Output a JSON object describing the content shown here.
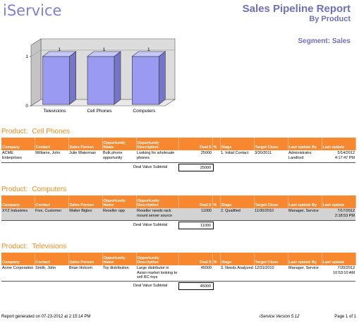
{
  "header": {
    "logo": "iService",
    "title": "Sales Pipeline Report",
    "subtitle": "By Product",
    "segment": "Segment: Sales"
  },
  "chart_data": {
    "type": "bar",
    "categories": [
      "Televisions",
      "Cell Phones",
      "Computers"
    ],
    "values": [
      1,
      1,
      1
    ],
    "data_labels": [
      "1",
      "1",
      "1"
    ],
    "ylim": [
      0,
      1
    ],
    "yticks": [
      "0",
      "1"
    ],
    "bar_color": "#9a9af2",
    "three_d": true
  },
  "columns": [
    "Company",
    "Contact",
    "Sales Person",
    "Opportunity Name",
    "Opportunity Description",
    "Deal $",
    "%",
    "Stage",
    "Target Close",
    "Last update By",
    "Last update"
  ],
  "subtotal_label": "Deal Value Subtotal",
  "product_label": "Product:",
  "sections": [
    {
      "product": "Cell Phones",
      "rows": [
        {
          "company": "ACME Enterprises",
          "contact": "Williams, John",
          "sales_person": "Julie Waterman",
          "opp_name": "Bulk phone opportunity",
          "opp_desc": "Looking for wholesale phones",
          "deal": "25000",
          "pct": "",
          "stage": "1. Initial Contact",
          "target_close": "3/30/2011",
          "last_by": "Administrator, Landlord",
          "last_date": "5/14/2012",
          "last_time": "4:17:47 PM",
          "shaded": false
        }
      ],
      "subtotal": "25000"
    },
    {
      "product": "Computers",
      "rows": [
        {
          "company": "XYZ Industries",
          "contact": "Five, Customer",
          "sales_person": "Walter Bigleo",
          "opp_name": "Reseller opp",
          "opp_desc": "Reseller needs rack mount server source",
          "deal": "11000",
          "pct": "",
          "stage": "2. Qualified",
          "target_close": "11/30/2010",
          "last_by": "Manager, Service",
          "last_date": "7/17/2012",
          "last_time": "2:18:53 PM",
          "shaded": true
        }
      ],
      "subtotal": "11000"
    },
    {
      "product": "Televisions",
      "rows": [
        {
          "company": "Acme Corporation",
          "contact": "Smith, John",
          "sales_person": "Brian Holcom",
          "opp_name": "Toy distribution",
          "opp_desc": "Large distributor in Asian market looking to sell RC toys",
          "deal": "45000",
          "pct": "",
          "stage": "3. Needs Analyzed",
          "target_close": "12/31/2010",
          "last_by": "Manager, Service",
          "last_date": "7/20/2012",
          "last_time": "10:53:10 AM",
          "shaded": false
        }
      ],
      "subtotal": "45000"
    }
  ],
  "footer": {
    "generated": "Report generated on 07-23-2012 at 2:15:14 PM",
    "version": "iService Version 5.12",
    "page": "Page 1 of 1"
  }
}
